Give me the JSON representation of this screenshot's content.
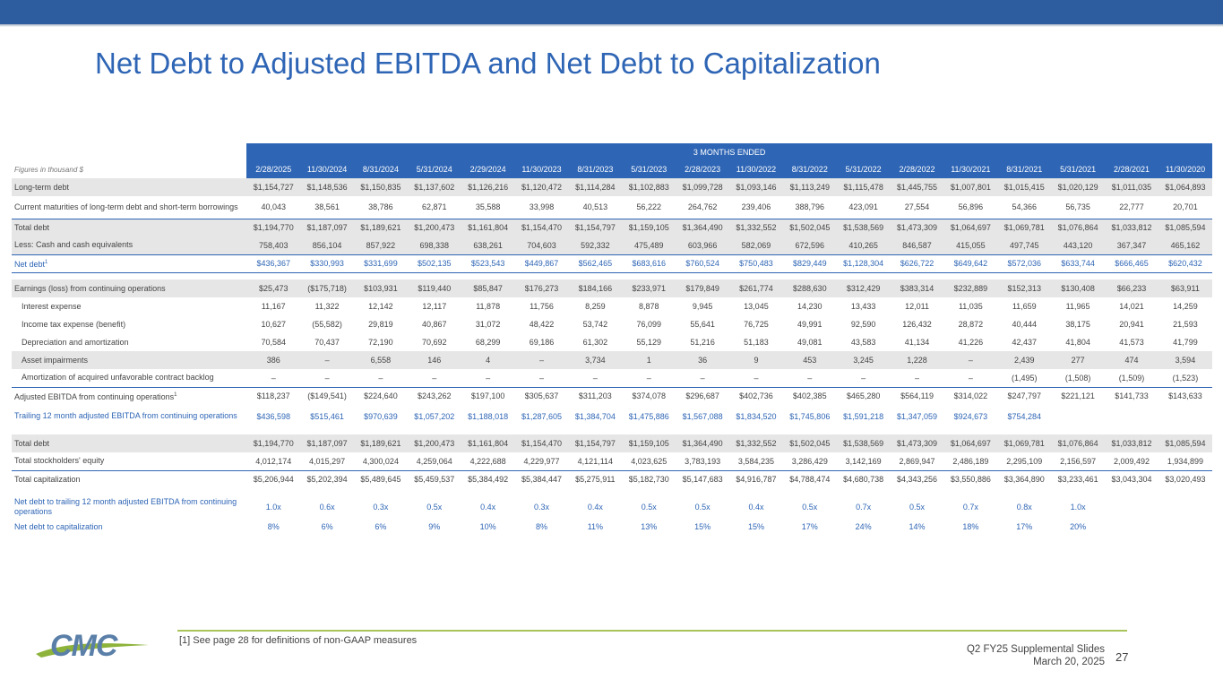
{
  "title": "Net Debt to Adjusted EBITDA and Net Debt to Capitalization",
  "table": {
    "banner": "3 MONTHS ENDED",
    "figures_note": "Figures in thousand $",
    "periods": [
      "2/28/2025",
      "11/30/2024",
      "8/31/2024",
      "5/31/2024",
      "2/29/2024",
      "11/30/2023",
      "8/31/2023",
      "5/31/2023",
      "2/28/2023",
      "11/30/2022",
      "8/31/2022",
      "5/31/2022",
      "2/28/2022",
      "11/30/2021",
      "8/31/2021",
      "5/31/2021",
      "2/28/2021",
      "11/30/2020"
    ],
    "rows": [
      {
        "label": "Long-term debt",
        "sup": "",
        "values": [
          "$1,154,727",
          "$1,148,536",
          "$1,150,835",
          "$1,137,602",
          "$1,126,216",
          "$1,120,472",
          "$1,114,284",
          "$1,102,883",
          "$1,099,728",
          "$1,093,146",
          "$1,113,249",
          "$1,115,478",
          "$1,445,755",
          "$1,007,801",
          "$1,015,415",
          "$1,020,129",
          "$1,011,035",
          "$1,064,893"
        ]
      },
      {
        "label": "Current maturities of long-term debt and short-term borrowings",
        "sup": "",
        "values": [
          "40,043",
          "38,561",
          "38,786",
          "62,871",
          "35,588",
          "33,998",
          "40,513",
          "56,222",
          "264,762",
          "239,406",
          "388,796",
          "423,091",
          "27,554",
          "56,896",
          "54,366",
          "56,735",
          "22,777",
          "20,701"
        ]
      },
      {
        "label": "Total debt",
        "sup": "",
        "values": [
          "$1,194,770",
          "$1,187,097",
          "$1,189,621",
          "$1,200,473",
          "$1,161,804",
          "$1,154,470",
          "$1,154,797",
          "$1,159,105",
          "$1,364,490",
          "$1,332,552",
          "$1,502,045",
          "$1,538,569",
          "$1,473,309",
          "$1,064,697",
          "$1,069,781",
          "$1,076,864",
          "$1,033,812",
          "$1,085,594"
        ]
      },
      {
        "label": "Less: Cash and cash equivalents",
        "sup": "",
        "values": [
          "758,403",
          "856,104",
          "857,922",
          "698,338",
          "638,261",
          "704,603",
          "592,332",
          "475,489",
          "603,966",
          "582,069",
          "672,596",
          "410,265",
          "846,587",
          "415,055",
          "497,745",
          "443,120",
          "367,347",
          "465,162"
        ]
      },
      {
        "label": "Net debt",
        "sup": "1",
        "values": [
          "$436,367",
          "$330,993",
          "$331,699",
          "$502,135",
          "$523,543",
          "$449,867",
          "$562,465",
          "$683,616",
          "$760,524",
          "$750,483",
          "$829,449",
          "$1,128,304",
          "$626,722",
          "$649,642",
          "$572,036",
          "$633,744",
          "$666,465",
          "$620,432"
        ]
      },
      {
        "label": "Earnings (loss) from continuing operations",
        "sup": "",
        "values": [
          "$25,473",
          "($175,718)",
          "$103,931",
          "$119,440",
          "$85,847",
          "$176,273",
          "$184,166",
          "$233,971",
          "$179,849",
          "$261,774",
          "$288,630",
          "$312,429",
          "$383,314",
          "$232,889",
          "$152,313",
          "$130,408",
          "$66,233",
          "$63,911"
        ]
      },
      {
        "label": "Interest expense",
        "sup": "",
        "values": [
          "11,167",
          "11,322",
          "12,142",
          "12,117",
          "11,878",
          "11,756",
          "8,259",
          "8,878",
          "9,945",
          "13,045",
          "14,230",
          "13,433",
          "12,011",
          "11,035",
          "11,659",
          "11,965",
          "14,021",
          "14,259"
        ]
      },
      {
        "label": "Income tax expense (benefit)",
        "sup": "",
        "values": [
          "10,627",
          "(55,582)",
          "29,819",
          "40,867",
          "31,072",
          "48,422",
          "53,742",
          "76,099",
          "55,641",
          "76,725",
          "49,991",
          "92,590",
          "126,432",
          "28,872",
          "40,444",
          "38,175",
          "20,941",
          "21,593"
        ]
      },
      {
        "label": "Depreciation and amortization",
        "sup": "",
        "values": [
          "70,584",
          "70,437",
          "72,190",
          "70,692",
          "68,299",
          "69,186",
          "61,302",
          "55,129",
          "51,216",
          "51,183",
          "49,081",
          "43,583",
          "41,134",
          "41,226",
          "42,437",
          "41,804",
          "41,573",
          "41,799"
        ]
      },
      {
        "label": "Asset impairments",
        "sup": "",
        "values": [
          "386",
          "–",
          "6,558",
          "146",
          "4",
          "–",
          "3,734",
          "1",
          "36",
          "9",
          "453",
          "3,245",
          "1,228",
          "–",
          "2,439",
          "277",
          "474",
          "3,594"
        ]
      },
      {
        "label": "Amortization of acquired unfavorable contract backlog",
        "sup": "",
        "values": [
          "–",
          "–",
          "–",
          "–",
          "–",
          "–",
          "–",
          "–",
          "–",
          "–",
          "–",
          "–",
          "–",
          "–",
          "(1,495)",
          "(1,508)",
          "(1,509)",
          "(1,523)"
        ]
      },
      {
        "label": "Adjusted EBITDA from continuing operations",
        "sup": "1",
        "values": [
          "$118,237",
          "($149,541)",
          "$224,640",
          "$243,262",
          "$197,100",
          "$305,637",
          "$311,203",
          "$374,078",
          "$296,687",
          "$402,736",
          "$402,385",
          "$465,280",
          "$564,119",
          "$314,022",
          "$247,797",
          "$221,121",
          "$141,733",
          "$143,633"
        ]
      },
      {
        "label": "Trailing 12 month adjusted EBITDA from continuing operations",
        "sup": "",
        "values": [
          "$436,598",
          "$515,461",
          "$970,639",
          "$1,057,202",
          "$1,188,018",
          "$1,287,605",
          "$1,384,704",
          "$1,475,886",
          "$1,567,088",
          "$1,834,520",
          "$1,745,806",
          "$1,591,218",
          "$1,347,059",
          "$924,673",
          "$754,284",
          "",
          "",
          ""
        ]
      },
      {
        "label": "Total debt",
        "sup": "",
        "values": [
          "$1,194,770",
          "$1,187,097",
          "$1,189,621",
          "$1,200,473",
          "$1,161,804",
          "$1,154,470",
          "$1,154,797",
          "$1,159,105",
          "$1,364,490",
          "$1,332,552",
          "$1,502,045",
          "$1,538,569",
          "$1,473,309",
          "$1,064,697",
          "$1,069,781",
          "$1,076,864",
          "$1,033,812",
          "$1,085,594"
        ]
      },
      {
        "label": "Total stockholders' equity",
        "sup": "",
        "values": [
          "4,012,174",
          "4,015,297",
          "4,300,024",
          "4,259,064",
          "4,222,688",
          "4,229,977",
          "4,121,114",
          "4,023,625",
          "3,783,193",
          "3,584,235",
          "3,286,429",
          "3,142,169",
          "2,869,947",
          "2,486,189",
          "2,295,109",
          "2,156,597",
          "2,009,492",
          "1,934,899"
        ]
      },
      {
        "label": "Total capitalization",
        "sup": "",
        "values": [
          "$5,206,944",
          "$5,202,394",
          "$5,489,645",
          "$5,459,537",
          "$5,384,492",
          "$5,384,447",
          "$5,275,911",
          "$5,182,730",
          "$5,147,683",
          "$4,916,787",
          "$4,788,474",
          "$4,680,738",
          "$4,343,256",
          "$3,550,886",
          "$3,364,890",
          "$3,233,461",
          "$3,043,304",
          "$3,020,493"
        ]
      },
      {
        "label": "Net debt to trailing 12 month adjusted EBITDA from continuing operations",
        "sup": "",
        "values": [
          "1.0x",
          "0.6x",
          "0.3x",
          "0.5x",
          "0.4x",
          "0.3x",
          "0.4x",
          "0.5x",
          "0.5x",
          "0.4x",
          "0.5x",
          "0.7x",
          "0.5x",
          "0.7x",
          "0.8x",
          "1.0x",
          "",
          ""
        ]
      },
      {
        "label": "Net debt to capitalization",
        "sup": "",
        "values": [
          "8%",
          "6%",
          "6%",
          "9%",
          "10%",
          "8%",
          "11%",
          "13%",
          "15%",
          "15%",
          "17%",
          "24%",
          "14%",
          "18%",
          "17%",
          "20%",
          "",
          ""
        ]
      }
    ]
  },
  "footnote": "[1] See page 28 for definitions of non-GAAP measures",
  "footer": {
    "deck": "Q2 FY25 Supplemental Slides",
    "date": "March 20, 2025",
    "page": "27"
  },
  "logo": {
    "text": "CMC",
    "colors": {
      "primary": "#5a7fa8",
      "swoosh": "#8db33a"
    }
  },
  "colors": {
    "accent": "#2e65b5",
    "topbar": "#2d5d9f",
    "rule": "#a9c45a",
    "shade": "#e6e6e6"
  }
}
